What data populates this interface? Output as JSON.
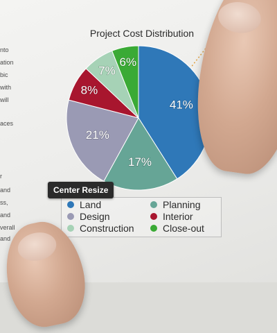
{
  "tooltip": {
    "label": "Center Resize"
  },
  "background_text": [
    "nto",
    "ation",
    "bic",
    "with",
    "will",
    "aces",
    "r",
    "and",
    "ss,",
    "and",
    "verall",
    "and"
  ],
  "chart_data": {
    "type": "pie",
    "title": "Project Cost Distribution",
    "slices": [
      {
        "label": "Land",
        "value": 41,
        "display": "41%",
        "color": "#2f78b8"
      },
      {
        "label": "Planning",
        "value": 17,
        "display": "17%",
        "color": "#66a596"
      },
      {
        "label": "Design",
        "value": 21,
        "display": "21%",
        "color": "#9a9ab4"
      },
      {
        "label": "Interior",
        "value": 8,
        "display": "8%",
        "color": "#a8162e"
      },
      {
        "label": "Construction",
        "value": 7,
        "display": "7%",
        "color": "#a6d2b6"
      },
      {
        "label": "Close-out",
        "value": 6,
        "display": "6%",
        "color": "#3aaa35"
      }
    ],
    "legend": {
      "placement": "bottom",
      "items": [
        {
          "label": "Land",
          "color": "#2f78b8"
        },
        {
          "label": "Planning",
          "color": "#66a596"
        },
        {
          "label": "Design",
          "color": "#9a9ab4"
        },
        {
          "label": "Interior",
          "color": "#a8162e"
        },
        {
          "label": "Construction",
          "color": "#a6d2b6"
        },
        {
          "label": "Close-out",
          "color": "#3aaa35"
        }
      ]
    }
  }
}
